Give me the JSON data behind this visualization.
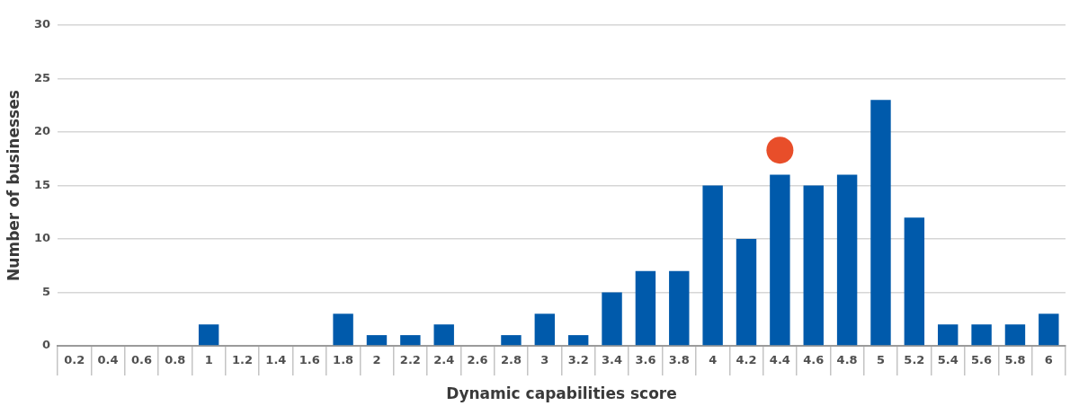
{
  "chart_data": {
    "type": "bar",
    "xlabel": "Dynamic capabilities score",
    "ylabel": "Number of businesses",
    "categories": [
      "0.2",
      "0.4",
      "0.6",
      "0.8",
      "1",
      "1.2",
      "1.4",
      "1.6",
      "1.8",
      "2",
      "2.2",
      "2.4",
      "2.6",
      "2.8",
      "3",
      "3.2",
      "3.4",
      "3.6",
      "3.8",
      "4",
      "4.2",
      "4.4",
      "4.6",
      "4.8",
      "5",
      "5.2",
      "5.4",
      "5.6",
      "5.8",
      "6"
    ],
    "series": [
      {
        "color": "#005aab",
        "values": [
          0,
          0,
          0,
          0,
          2,
          0,
          0,
          0,
          3,
          1,
          1,
          2,
          0,
          1,
          3,
          1,
          5,
          7,
          7,
          15,
          10,
          16,
          15,
          16,
          23,
          12,
          2,
          2,
          2,
          3
        ]
      },
      {
        "type": "scatter",
        "color": "#e84e2a",
        "marker": "circle",
        "x": [
          "4.4"
        ],
        "values": [
          18.3
        ]
      }
    ],
    "ylim": [
      0,
      30
    ],
    "yticks": [
      0,
      5,
      10,
      15,
      20,
      25,
      30
    ],
    "grid": "y",
    "legend": false
  }
}
